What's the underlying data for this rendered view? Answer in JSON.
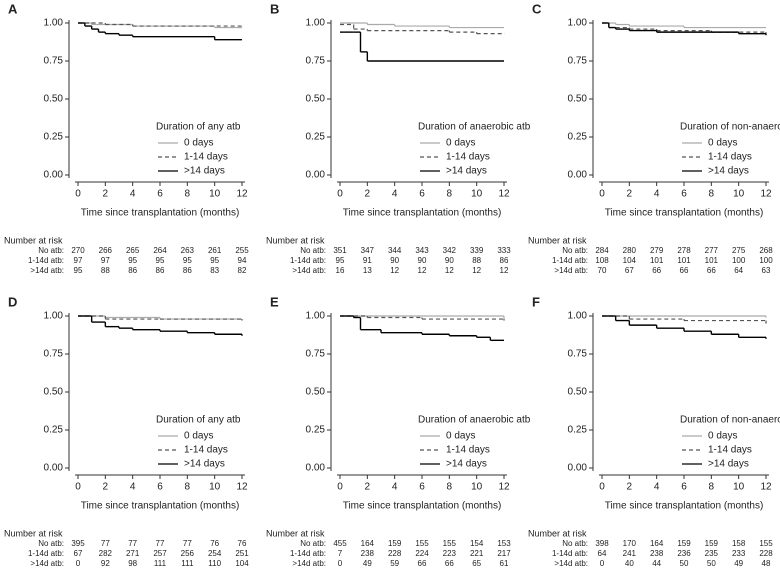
{
  "chart_data": [
    {
      "type": "line",
      "step": true,
      "panel_label": "A",
      "legend_title": "Duration of any atb",
      "legend": "lower right",
      "xlabel": "Time since transplantation (months)",
      "xlim": [
        0,
        12
      ],
      "ylim": [
        0,
        1
      ],
      "xticks": [
        0,
        2,
        4,
        6,
        8,
        10,
        12
      ],
      "yticks": [
        {
          "value": 0,
          "label": "0.00"
        },
        {
          "value": 0.25,
          "label": "0.25"
        },
        {
          "value": 0.5,
          "label": "0.50"
        },
        {
          "value": 0.75,
          "label": "0.75"
        },
        {
          "value": 1,
          "label": "1.00"
        }
      ],
      "series": [
        {
          "name": "0 days",
          "color": "#aaaaaa",
          "dash": false,
          "x": [
            0,
            1,
            2,
            4,
            10,
            12
          ],
          "values": [
            1,
            0.99,
            0.99,
            0.98,
            0.97,
            0.97
          ]
        },
        {
          "name": "1-14 days",
          "color": "#555555",
          "dash": true,
          "x": [
            0,
            1,
            2,
            4,
            12
          ],
          "values": [
            1,
            1,
            0.99,
            0.98,
            0.98
          ]
        },
        {
          "name": ">14 days",
          "color": "#000000",
          "dash": false,
          "x": [
            0,
            0.5,
            1,
            1.5,
            2,
            3,
            4,
            10,
            12
          ],
          "values": [
            1,
            0.98,
            0.96,
            0.94,
            0.93,
            0.92,
            0.91,
            0.89,
            0.89
          ]
        }
      ],
      "risk_table": {
        "title": "Number at risk",
        "rows": [
          {
            "label": "No atb:",
            "values": [
              270,
              266,
              265,
              264,
              263,
              261,
              255
            ]
          },
          {
            "label": "1-14d atb:",
            "values": [
              97,
              97,
              95,
              95,
              95,
              95,
              94
            ]
          },
          {
            "label": ">14d atb:",
            "values": [
              95,
              88,
              86,
              86,
              86,
              83,
              82
            ]
          }
        ]
      }
    },
    {
      "type": "line",
      "step": true,
      "panel_label": "B",
      "legend_title": "Duration of anaerobic atb",
      "legend": "lower right",
      "xlabel": "Time since transplantation (months)",
      "xlim": [
        0,
        12
      ],
      "ylim": [
        0,
        1
      ],
      "xticks": [
        0,
        2,
        4,
        6,
        8,
        10,
        12
      ],
      "yticks": [
        {
          "value": 0,
          "label": "0.00"
        },
        {
          "value": 0.25,
          "label": "0.25"
        },
        {
          "value": 0.5,
          "label": "0.50"
        },
        {
          "value": 0.75,
          "label": "0.75"
        },
        {
          "value": 1,
          "label": "1.00"
        }
      ],
      "series": [
        {
          "name": "0 days",
          "color": "#aaaaaa",
          "dash": false,
          "x": [
            0,
            2,
            4,
            8,
            12
          ],
          "values": [
            1,
            0.99,
            0.98,
            0.97,
            0.97
          ]
        },
        {
          "name": "1-14 days",
          "color": "#555555",
          "dash": true,
          "x": [
            0,
            1,
            2,
            8,
            10,
            12
          ],
          "values": [
            0.99,
            0.96,
            0.95,
            0.94,
            0.93,
            0.93
          ]
        },
        {
          "name": ">14 days",
          "color": "#000000",
          "dash": false,
          "x": [
            0,
            1,
            1.5,
            2,
            12
          ],
          "values": [
            0.94,
            0.94,
            0.81,
            0.75,
            0.75
          ]
        }
      ],
      "risk_table": {
        "title": "Number at risk",
        "rows": [
          {
            "label": "No atb:",
            "values": [
              351,
              347,
              344,
              343,
              342,
              339,
              333
            ]
          },
          {
            "label": "1-14d atb:",
            "values": [
              95,
              91,
              90,
              90,
              90,
              88,
              86
            ]
          },
          {
            "label": ">14d atb:",
            "values": [
              16,
              13,
              12,
              12,
              12,
              12,
              12
            ]
          }
        ]
      }
    },
    {
      "type": "line",
      "step": true,
      "panel_label": "C",
      "legend_title": "Duration of non-anaerobic atb",
      "legend": "lower right",
      "xlabel": "Time since transplantation (months)",
      "xlim": [
        0,
        12
      ],
      "ylim": [
        0,
        1
      ],
      "xticks": [
        0,
        2,
        4,
        6,
        8,
        10,
        12
      ],
      "yticks": [
        {
          "value": 0,
          "label": "0.00"
        },
        {
          "value": 0.25,
          "label": "0.25"
        },
        {
          "value": 0.5,
          "label": "0.50"
        },
        {
          "value": 0.75,
          "label": "0.75"
        },
        {
          "value": 1,
          "label": "1.00"
        }
      ],
      "series": [
        {
          "name": "0 days",
          "color": "#aaaaaa",
          "dash": false,
          "x": [
            0,
            1,
            2,
            6,
            12
          ],
          "values": [
            1,
            0.99,
            0.98,
            0.97,
            0.97
          ]
        },
        {
          "name": "1-14 days",
          "color": "#555555",
          "dash": true,
          "x": [
            0,
            0.5,
            2,
            4,
            8,
            12
          ],
          "values": [
            1,
            0.97,
            0.96,
            0.95,
            0.94,
            0.93
          ]
        },
        {
          "name": ">14 days",
          "color": "#000000",
          "dash": false,
          "x": [
            0,
            0.5,
            1,
            2,
            4,
            10,
            12
          ],
          "values": [
            1,
            0.97,
            0.96,
            0.95,
            0.94,
            0.93,
            0.92
          ]
        }
      ],
      "risk_table": {
        "title": "Number at risk",
        "rows": [
          {
            "label": "No atb:",
            "values": [
              284,
              280,
              279,
              278,
              277,
              275,
              268
            ]
          },
          {
            "label": "1-14d atb:",
            "values": [
              108,
              104,
              101,
              101,
              101,
              100,
              100
            ]
          },
          {
            "label": ">14d atb:",
            "values": [
              70,
              67,
              66,
              66,
              66,
              64,
              63
            ]
          }
        ]
      }
    },
    {
      "type": "line",
      "step": true,
      "panel_label": "D",
      "legend_title": "Duration of any atb",
      "legend": "lower right",
      "xlabel": "Time since transplantation (months)",
      "xlim": [
        0,
        12
      ],
      "ylim": [
        0,
        1
      ],
      "xticks": [
        0,
        2,
        4,
        6,
        8,
        10,
        12
      ],
      "yticks": [
        {
          "value": 0,
          "label": "0.00"
        },
        {
          "value": 0.25,
          "label": "0.25"
        },
        {
          "value": 0.5,
          "label": "0.50"
        },
        {
          "value": 0.75,
          "label": "0.75"
        },
        {
          "value": 1,
          "label": "1.00"
        }
      ],
      "series": [
        {
          "name": "0 days",
          "color": "#aaaaaa",
          "dash": false,
          "x": [
            0,
            2,
            6,
            12
          ],
          "values": [
            1,
            0.99,
            0.98,
            0.98
          ]
        },
        {
          "name": "1-14 days",
          "color": "#555555",
          "dash": true,
          "x": [
            0,
            2,
            6,
            12
          ],
          "values": [
            1,
            0.98,
            0.98,
            0.97
          ]
        },
        {
          "name": ">14 days",
          "color": "#000000",
          "dash": false,
          "x": [
            0,
            1,
            2,
            3,
            4,
            6,
            8,
            10,
            12
          ],
          "values": [
            1,
            0.96,
            0.93,
            0.92,
            0.91,
            0.9,
            0.89,
            0.88,
            0.87
          ]
        }
      ],
      "risk_table": {
        "title": "Number at risk",
        "rows": [
          {
            "label": "No atb:",
            "values": [
              395,
              77,
              77,
              77,
              77,
              76,
              76
            ]
          },
          {
            "label": "1-14d atb:",
            "values": [
              67,
              282,
              271,
              257,
              256,
              254,
              251
            ]
          },
          {
            "label": ">14d atb:",
            "values": [
              0,
              92,
              98,
              111,
              111,
              110,
              104
            ]
          }
        ]
      }
    },
    {
      "type": "line",
      "step": true,
      "panel_label": "E",
      "legend_title": "Duration of anaerobic atb",
      "legend": "lower right",
      "xlabel": "Time since transplantation (months)",
      "xlim": [
        0,
        12
      ],
      "ylim": [
        0,
        1
      ],
      "xticks": [
        0,
        2,
        4,
        6,
        8,
        10,
        12
      ],
      "yticks": [
        {
          "value": 0,
          "label": "0.00"
        },
        {
          "value": 0.25,
          "label": "0.25"
        },
        {
          "value": 0.5,
          "label": "0.50"
        },
        {
          "value": 0.75,
          "label": "0.75"
        },
        {
          "value": 1,
          "label": "1.00"
        }
      ],
      "series": [
        {
          "name": "0 days",
          "color": "#aaaaaa",
          "dash": false,
          "x": [
            0,
            12
          ],
          "values": [
            1,
            0.98
          ]
        },
        {
          "name": "1-14 days",
          "color": "#555555",
          "dash": true,
          "x": [
            0,
            2,
            6,
            12
          ],
          "values": [
            1,
            0.99,
            0.98,
            0.97
          ]
        },
        {
          "name": ">14 days",
          "color": "#000000",
          "dash": false,
          "x": [
            0,
            1,
            1.5,
            3,
            6,
            8,
            10,
            11,
            12
          ],
          "values": [
            1,
            0.99,
            0.91,
            0.89,
            0.88,
            0.87,
            0.86,
            0.84,
            0.84
          ]
        }
      ],
      "risk_table": {
        "title": "Number at risk",
        "rows": [
          {
            "label": "No atb:",
            "values": [
              455,
              164,
              159,
              155,
              155,
              154,
              153
            ]
          },
          {
            "label": "1-14d atb:",
            "values": [
              7,
              238,
              228,
              224,
              223,
              221,
              217
            ]
          },
          {
            "label": ">14d atb:",
            "values": [
              0,
              49,
              59,
              66,
              66,
              65,
              61
            ]
          }
        ]
      }
    },
    {
      "type": "line",
      "step": true,
      "panel_label": "F",
      "legend_title": "Duration of non-anaerobic atb",
      "legend": "lower right",
      "xlabel": "Time since transplantation (months)",
      "xlim": [
        0,
        12
      ],
      "ylim": [
        0,
        1
      ],
      "xticks": [
        0,
        2,
        4,
        6,
        8,
        10,
        12
      ],
      "yticks": [
        {
          "value": 0,
          "label": "0.00"
        },
        {
          "value": 0.25,
          "label": "0.25"
        },
        {
          "value": 0.5,
          "label": "0.50"
        },
        {
          "value": 0.75,
          "label": "0.75"
        },
        {
          "value": 1,
          "label": "1.00"
        }
      ],
      "series": [
        {
          "name": "0 days",
          "color": "#aaaaaa",
          "dash": false,
          "x": [
            0,
            12
          ],
          "values": [
            1,
            0.99
          ]
        },
        {
          "name": "1-14 days",
          "color": "#555555",
          "dash": true,
          "x": [
            0,
            2,
            6,
            12
          ],
          "values": [
            1,
            0.98,
            0.97,
            0.95
          ]
        },
        {
          "name": ">14 days",
          "color": "#000000",
          "dash": false,
          "x": [
            0,
            1,
            2,
            4,
            6,
            8,
            10,
            12
          ],
          "values": [
            1,
            0.97,
            0.94,
            0.92,
            0.9,
            0.88,
            0.86,
            0.85
          ]
        }
      ],
      "risk_table": {
        "title": "Number at risk",
        "rows": [
          {
            "label": "No atb:",
            "values": [
              398,
              170,
              164,
              159,
              159,
              158,
              155
            ]
          },
          {
            "label": "1-14d atb:",
            "values": [
              64,
              241,
              238,
              236,
              235,
              233,
              228
            ]
          },
          {
            "label": ">14d atb:",
            "values": [
              0,
              40,
              44,
              50,
              50,
              49,
              48
            ]
          }
        ]
      }
    }
  ]
}
